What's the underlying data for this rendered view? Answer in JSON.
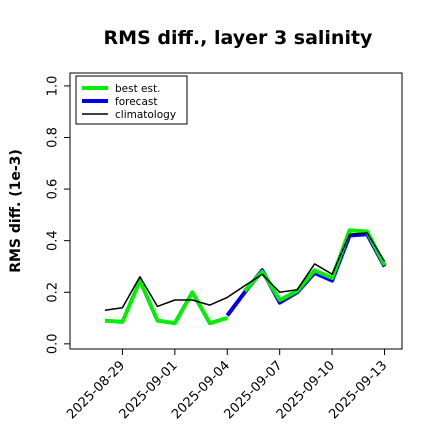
{
  "chart_data": {
    "type": "line",
    "title": "RMS diff., layer 3 salinity",
    "xlabel": "",
    "ylabel": "RMS diff. (1e-3)",
    "ylim": [
      -0.02,
      1.05
    ],
    "yticks": [
      0.0,
      0.2,
      0.4,
      0.6,
      0.8,
      1.0
    ],
    "ytick_labels": [
      "0.0",
      "0.2",
      "0.4",
      "0.6",
      "0.8",
      "1.0"
    ],
    "xlim": [
      "2025-08-26",
      "2025-09-14"
    ],
    "xticks": [
      "2025-08-29",
      "2025-09-01",
      "2025-09-04",
      "2025-09-07",
      "2025-09-10",
      "2025-09-13"
    ],
    "xtick_labels": [
      "2025-08-29",
      "2025-09-01",
      "2025-09-04",
      "2025-09-07",
      "2025-09-10",
      "2025-09-13"
    ],
    "highlight_tick": "2025-09-04",
    "highlight_color": "#228b22",
    "grid": false,
    "legend_position": "top-left",
    "series": [
      {
        "name": "best est.",
        "color": "#00ee00",
        "x": [
          "2025-08-28",
          "2025-08-29",
          "2025-08-30",
          "2025-08-31",
          "2025-09-01",
          "2025-09-02",
          "2025-09-03",
          "2025-09-04"
        ],
        "values": [
          0.09,
          0.085,
          0.245,
          0.09,
          0.08,
          0.2,
          0.08,
          0.1
        ]
      },
      {
        "name": "forecast",
        "color": "#0000ee",
        "x": [
          "2025-09-04",
          "2025-09-05",
          "2025-09-06",
          "2025-09-07",
          "2025-09-08",
          "2025-09-09",
          "2025-09-10",
          "2025-09-11",
          "2025-09-12",
          "2025-09-13"
        ],
        "values": [
          0.11,
          0.2,
          0.285,
          0.16,
          0.2,
          0.275,
          0.245,
          0.42,
          0.425,
          0.3
        ]
      },
      {
        "name": "best est.",
        "color": "#00ee00",
        "x": [
          "2025-09-05",
          "2025-09-06",
          "2025-09-07",
          "2025-09-08",
          "2025-09-09",
          "2025-09-10",
          "2025-09-11",
          "2025-09-12",
          "2025-09-13"
        ],
        "values": [
          0.205,
          0.28,
          0.17,
          0.205,
          0.285,
          0.255,
          0.44,
          0.435,
          0.305
        ]
      },
      {
        "name": "climatology",
        "color": "#000000",
        "x": [
          "2025-08-28",
          "2025-08-29",
          "2025-08-30",
          "2025-08-31",
          "2025-09-01",
          "2025-09-02",
          "2025-09-03",
          "2025-09-04",
          "2025-09-05",
          "2025-09-06",
          "2025-09-07",
          "2025-09-08",
          "2025-09-09",
          "2025-09-10",
          "2025-09-11",
          "2025-09-12",
          "2025-09-13"
        ],
        "values": [
          0.13,
          0.14,
          0.26,
          0.145,
          0.17,
          0.17,
          0.15,
          0.18,
          0.225,
          0.27,
          0.2,
          0.21,
          0.31,
          0.27,
          0.425,
          0.43,
          0.32
        ]
      }
    ]
  }
}
